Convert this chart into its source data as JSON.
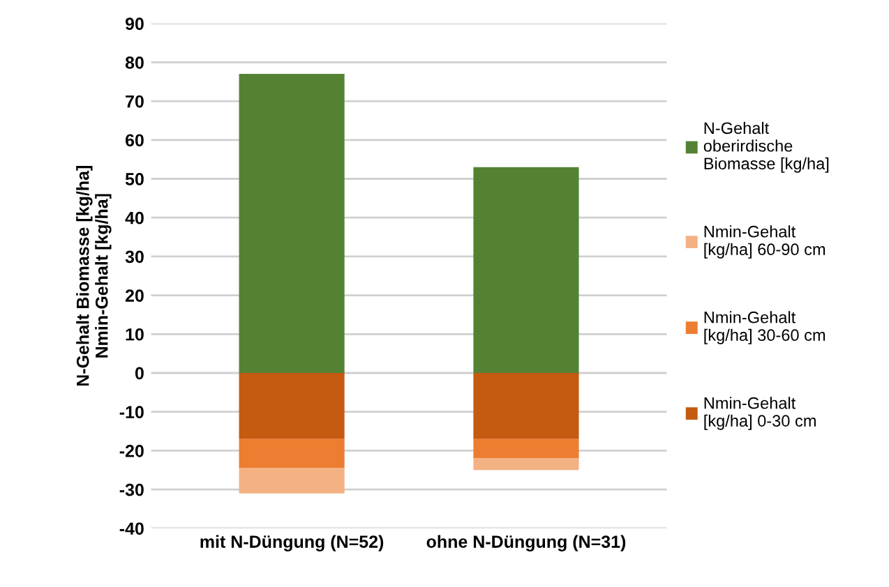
{
  "chart_data": {
    "type": "bar",
    "stacked": true,
    "ylabel": "N-Gehalt Biomasse [kg/ha]\nNmin-Gehalt [kg/ha]",
    "categories": [
      "mit N-Düngung (N=52)",
      "ohne N-Düngung (N=31)"
    ],
    "series": [
      {
        "name": "N-Gehalt oberirdische Biomasse [kg/ha]",
        "color": "#548235",
        "values": [
          77,
          53
        ]
      },
      {
        "name": "Nmin-Gehalt [kg/ha] 0-30 cm",
        "color": "#c55a11",
        "values": [
          -17,
          -17
        ]
      },
      {
        "name": "Nmin-Gehalt [kg/ha] 30-60 cm",
        "color": "#ed7d31",
        "values": [
          -7.5,
          -5
        ]
      },
      {
        "name": "Nmin-Gehalt [kg/ha] 60-90 cm",
        "color": "#f4b183",
        "values": [
          -6.5,
          -3
        ]
      }
    ],
    "ylim": [
      -40,
      90
    ],
    "yticks": [
      -40,
      -30,
      -20,
      -10,
      0,
      10,
      20,
      30,
      40,
      50,
      60,
      70,
      80,
      90
    ],
    "grid": "y",
    "legend": "right"
  }
}
